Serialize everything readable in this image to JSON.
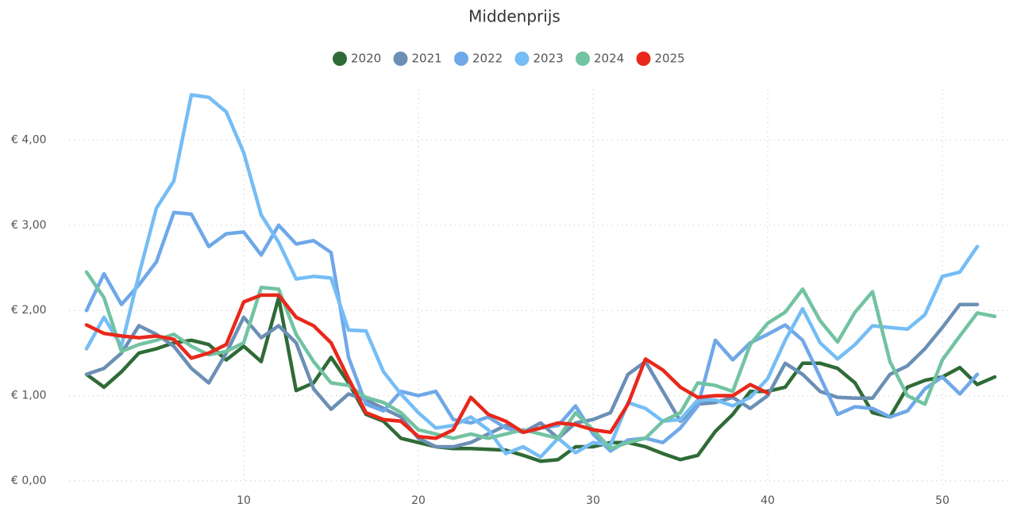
{
  "chart_data": {
    "type": "line",
    "title": "Middenprijs",
    "x": [
      1,
      2,
      3,
      4,
      5,
      6,
      7,
      8,
      9,
      10,
      11,
      12,
      13,
      14,
      15,
      16,
      17,
      18,
      19,
      20,
      21,
      22,
      23,
      24,
      25,
      26,
      27,
      28,
      29,
      30,
      31,
      32,
      33,
      34,
      35,
      36,
      37,
      38,
      39,
      40,
      41,
      42,
      43,
      44,
      45,
      46,
      47,
      48,
      49,
      50,
      51,
      52,
      53
    ],
    "xlim": [
      0,
      54
    ],
    "xticks": [
      10,
      20,
      30,
      40,
      50
    ],
    "ylim": [
      0,
      4.6
    ],
    "yticks": [
      {
        "value": 0,
        "label": "€ 0,00"
      },
      {
        "value": 1,
        "label": "€ 1,00"
      },
      {
        "value": 2,
        "label": "€ 2,00"
      },
      {
        "value": 3,
        "label": "€ 3,00"
      },
      {
        "value": 4,
        "label": "€ 4,00"
      }
    ],
    "grid": true,
    "legend": "top",
    "series": [
      {
        "name": "2020",
        "color": "#2f6b36",
        "values": [
          1.25,
          1.1,
          1.28,
          1.5,
          1.55,
          1.62,
          1.65,
          1.6,
          1.42,
          1.58,
          1.4,
          2.15,
          1.06,
          1.15,
          1.45,
          1.15,
          0.78,
          0.7,
          0.5,
          0.45,
          0.4,
          0.38,
          0.38,
          0.37,
          0.36,
          0.3,
          0.23,
          0.25,
          0.4,
          0.4,
          0.45,
          0.45,
          0.4,
          0.32,
          0.25,
          0.3,
          0.58,
          0.78,
          1.05,
          1.05,
          1.1,
          1.38,
          1.38,
          1.32,
          1.15,
          0.8,
          0.75,
          1.1,
          1.18,
          1.22,
          1.33,
          1.13,
          1.22
        ]
      },
      {
        "name": "2021",
        "color": "#6b8fb5",
        "values": [
          1.25,
          1.32,
          1.5,
          1.82,
          1.72,
          1.58,
          1.32,
          1.15,
          1.5,
          1.92,
          1.68,
          1.82,
          1.62,
          1.08,
          0.84,
          1.02,
          0.95,
          0.85,
          0.75,
          0.5,
          0.4,
          0.4,
          0.45,
          0.55,
          0.65,
          0.57,
          0.68,
          0.5,
          0.68,
          0.72,
          0.8,
          1.25,
          1.4,
          1.05,
          0.7,
          0.9,
          0.92,
          0.98,
          0.85,
          1.0,
          1.38,
          1.25,
          1.05,
          0.98,
          0.97,
          0.97,
          1.25,
          1.35,
          1.55,
          1.8,
          2.07,
          2.07,
          null
        ]
      },
      {
        "name": "2022",
        "color": "#6fa8e8",
        "values": [
          2.0,
          2.43,
          2.07,
          2.3,
          2.57,
          3.15,
          3.13,
          2.75,
          2.9,
          2.92,
          2.65,
          3.0,
          2.78,
          2.82,
          2.68,
          1.45,
          0.9,
          0.82,
          1.05,
          1.0,
          1.05,
          0.72,
          0.68,
          0.75,
          0.62,
          0.57,
          0.62,
          0.65,
          0.88,
          0.55,
          0.35,
          0.48,
          0.5,
          0.45,
          0.62,
          0.88,
          1.65,
          1.42,
          1.62,
          1.72,
          1.83,
          1.65,
          1.22,
          0.78,
          0.87,
          0.85,
          0.75,
          0.82,
          1.08,
          1.22,
          1.02,
          1.25,
          null
        ]
      },
      {
        "name": "2023",
        "color": "#75bdf5",
        "values": [
          1.55,
          1.92,
          1.58,
          2.42,
          3.2,
          3.52,
          4.53,
          4.5,
          4.33,
          3.85,
          3.12,
          2.8,
          2.37,
          2.4,
          2.38,
          1.77,
          1.76,
          1.28,
          1.02,
          0.8,
          0.62,
          0.65,
          0.75,
          0.6,
          0.32,
          0.4,
          0.28,
          0.5,
          0.33,
          0.45,
          0.42,
          0.92,
          0.85,
          0.7,
          0.72,
          0.95,
          0.95,
          0.88,
          0.98,
          1.2,
          1.65,
          2.02,
          1.62,
          1.43,
          1.6,
          1.82,
          1.8,
          1.78,
          1.95,
          2.4,
          2.45,
          2.75,
          null
        ]
      },
      {
        "name": "2024",
        "color": "#72c3a1",
        "values": [
          2.45,
          2.15,
          1.52,
          1.6,
          1.65,
          1.72,
          1.58,
          1.48,
          1.52,
          1.62,
          2.27,
          2.25,
          1.72,
          1.4,
          1.15,
          1.12,
          0.98,
          0.92,
          0.8,
          0.6,
          0.55,
          0.5,
          0.55,
          0.5,
          0.55,
          0.6,
          0.55,
          0.5,
          0.8,
          0.6,
          0.38,
          0.45,
          0.5,
          0.7,
          0.8,
          1.15,
          1.12,
          1.05,
          1.6,
          1.85,
          1.98,
          2.25,
          1.88,
          1.63,
          1.98,
          2.22,
          1.4,
          1.0,
          0.9,
          1.42,
          1.7,
          1.97,
          1.93
        ]
      },
      {
        "name": "2025",
        "color": "#e8281b",
        "values": [
          1.83,
          1.73,
          1.7,
          1.68,
          1.7,
          1.66,
          1.44,
          1.5,
          1.6,
          2.1,
          2.18,
          2.18,
          1.92,
          1.82,
          1.62,
          1.2,
          0.8,
          0.72,
          0.7,
          0.52,
          0.5,
          0.6,
          0.98,
          0.78,
          0.7,
          0.57,
          0.62,
          0.68,
          0.66,
          0.6,
          0.57,
          0.9,
          1.43,
          1.3,
          1.1,
          0.98,
          1.0,
          1.0,
          1.13,
          1.03,
          null,
          null,
          null,
          null,
          null,
          null,
          null,
          null,
          null,
          null,
          null,
          null,
          null
        ]
      }
    ]
  }
}
